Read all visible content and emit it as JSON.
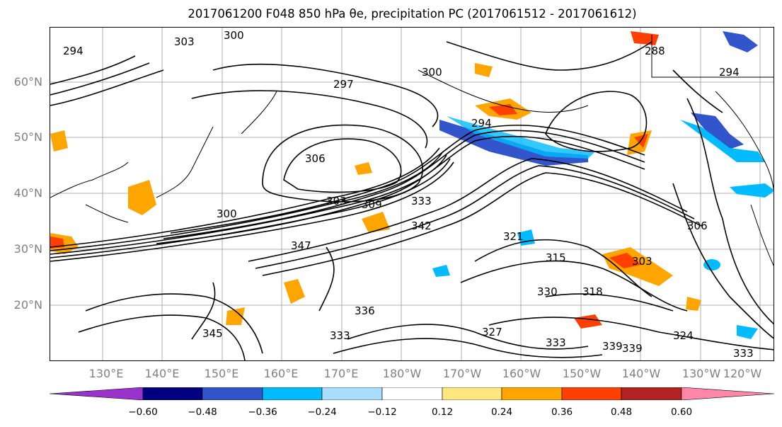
{
  "title": "2017061200 F048 850 hPa θe, precipitation PC (2017061512 - 2017061612)",
  "lat_labels": [
    "60°N",
    "50°N",
    "40°N",
    "30°N",
    "20°N"
  ],
  "lon_labels": [
    "130°E",
    "140°E",
    "150°E",
    "160°E",
    "170°E",
    "180°W",
    "170°W",
    "160°W",
    "150°W",
    "140°W",
    "130°W",
    "120°W"
  ],
  "contour_labels": [
    "294",
    "303",
    "300",
    "297",
    "300",
    "288",
    "294",
    "306",
    "303",
    "309",
    "333",
    "342",
    "347",
    "330",
    "318",
    "303",
    "339",
    "345",
    "336",
    "333",
    "327",
    "333",
    "339",
    "333",
    "324",
    "306",
    "315",
    "321",
    "300",
    "294"
  ],
  "colorbar": {
    "ticks": [
      "−0.60",
      "−0.48",
      "−0.36",
      "−0.24",
      "−0.12",
      "0.12",
      "0.24",
      "0.36",
      "0.48",
      "0.60"
    ],
    "colors": [
      "#9933cc",
      "#000080",
      "#3355cc",
      "#00bbff",
      "#aaddff",
      "#ffffff",
      "#ffe680",
      "#ffa500",
      "#ff4000",
      "#b22222",
      "#ff88aa"
    ]
  }
}
